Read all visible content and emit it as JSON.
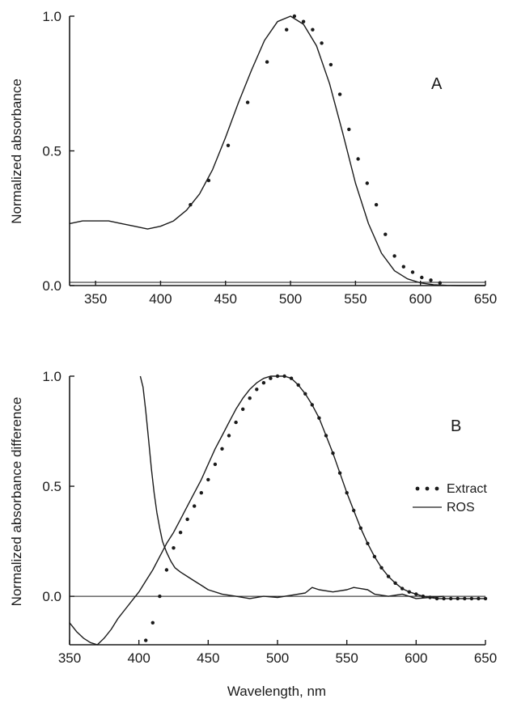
{
  "figure": {
    "xlabel": "Wavelength, nm",
    "colors": {
      "ink": "#1a1a1a",
      "background": "#ffffff"
    }
  },
  "chart_data": [
    {
      "type": "line",
      "panel_label": "A",
      "ylabel": "Normalized absorbance",
      "xlim": [
        330,
        650
      ],
      "ylim": [
        0,
        1.0
      ],
      "x_ticks": [
        "350",
        "400",
        "450",
        "500",
        "550",
        "600",
        "650"
      ],
      "x_tick_values": [
        350,
        400,
        450,
        500,
        550,
        600,
        650
      ],
      "y_ticks": [
        "0.0",
        "0.5",
        "1.0"
      ],
      "y_tick_values": [
        0,
        0.5,
        1.0
      ],
      "grid": false,
      "series": [
        {
          "style": "solid",
          "x": [
            330,
            340,
            350,
            360,
            370,
            380,
            390,
            400,
            410,
            420,
            430,
            440,
            450,
            460,
            470,
            480,
            490,
            500,
            510,
            520,
            530,
            540,
            550,
            560,
            570,
            580,
            590,
            600,
            610,
            620,
            630,
            640,
            650
          ],
          "y": [
            0.23,
            0.24,
            0.24,
            0.24,
            0.23,
            0.22,
            0.21,
            0.22,
            0.24,
            0.28,
            0.34,
            0.43,
            0.55,
            0.68,
            0.8,
            0.91,
            0.98,
            1.0,
            0.97,
            0.89,
            0.75,
            0.57,
            0.38,
            0.23,
            0.12,
            0.055,
            0.025,
            0.01,
            0.003,
            0.001,
            0,
            0,
            0
          ]
        },
        {
          "style": "dotted",
          "x": [
            423,
            437,
            452,
            467,
            482,
            497,
            503,
            510,
            517,
            524,
            531,
            538,
            545,
            552,
            559,
            566,
            573,
            580,
            587,
            594,
            601,
            608,
            615
          ],
          "y": [
            0.3,
            0.39,
            0.52,
            0.68,
            0.83,
            0.95,
            1.0,
            0.98,
            0.95,
            0.9,
            0.82,
            0.71,
            0.58,
            0.47,
            0.38,
            0.3,
            0.19,
            0.11,
            0.07,
            0.05,
            0.03,
            0.02,
            0.01
          ]
        }
      ]
    },
    {
      "type": "line",
      "panel_label": "B",
      "ylabel": "Normalized absorbance difference",
      "xlim": [
        350,
        650
      ],
      "ylim": [
        -0.22,
        1.0
      ],
      "x_ticks": [
        "350",
        "400",
        "450",
        "500",
        "550",
        "600",
        "650"
      ],
      "x_tick_values": [
        350,
        400,
        450,
        500,
        550,
        600,
        650
      ],
      "y_ticks": [
        "0.0",
        "0.5",
        "1.0"
      ],
      "y_tick_values": [
        0,
        0.5,
        1.0
      ],
      "grid": false,
      "zero_line": true,
      "legend": {
        "position": "right",
        "entries": [
          "Extract",
          "ROS"
        ]
      },
      "series": [
        {
          "name": "Extract",
          "style": "dotted",
          "x": [
            405,
            410,
            415,
            420,
            425,
            430,
            435,
            440,
            445,
            450,
            455,
            460,
            465,
            470,
            475,
            480,
            485,
            490,
            495,
            500,
            505,
            510,
            515,
            520,
            525,
            530,
            535,
            540,
            545,
            550,
            555,
            560,
            565,
            570,
            575,
            580,
            585,
            590,
            595,
            600,
            605,
            610,
            615,
            620,
            625,
            630,
            635,
            640,
            645,
            650
          ],
          "y": [
            -0.2,
            -0.12,
            0.0,
            0.12,
            0.22,
            0.29,
            0.35,
            0.41,
            0.47,
            0.53,
            0.6,
            0.67,
            0.73,
            0.79,
            0.85,
            0.9,
            0.94,
            0.97,
            0.99,
            1.0,
            1.0,
            0.99,
            0.96,
            0.92,
            0.87,
            0.81,
            0.73,
            0.65,
            0.56,
            0.47,
            0.39,
            0.31,
            0.24,
            0.18,
            0.13,
            0.09,
            0.06,
            0.035,
            0.02,
            0.01,
            0.0,
            -0.005,
            -0.01,
            -0.01,
            -0.01,
            -0.01,
            -0.01,
            -0.01,
            -0.01,
            -0.01
          ]
        },
        {
          "name": "ROS",
          "style": "solid",
          "series_a": {
            "x": [
              350,
              355,
              360,
              365,
              370,
              375,
              380,
              385,
              390,
              395,
              400,
              405,
              410,
              415,
              420,
              425,
              430,
              435,
              440,
              445,
              450,
              455,
              460,
              465,
              470,
              475,
              480,
              485,
              490,
              495,
              500,
              505,
              510,
              515,
              520,
              525,
              530,
              535,
              540,
              545,
              550,
              555,
              560,
              565,
              570,
              575,
              580,
              585,
              590,
              595,
              600,
              605,
              610,
              615,
              620,
              625,
              630,
              635,
              640,
              645,
              650
            ],
            "y": [
              -0.12,
              -0.16,
              -0.19,
              -0.21,
              -0.22,
              -0.19,
              -0.15,
              -0.1,
              -0.06,
              -0.02,
              0.02,
              0.07,
              0.12,
              0.18,
              0.24,
              0.29,
              0.35,
              0.41,
              0.47,
              0.53,
              0.6,
              0.67,
              0.73,
              0.79,
              0.85,
              0.9,
              0.94,
              0.97,
              0.99,
              1.0,
              1.0,
              1.0,
              0.99,
              0.96,
              0.92,
              0.87,
              0.81,
              0.73,
              0.65,
              0.56,
              0.47,
              0.39,
              0.31,
              0.24,
              0.18,
              0.13,
              0.09,
              0.06,
              0.035,
              0.02,
              0.01,
              0.0,
              -0.005,
              -0.01,
              -0.01,
              -0.01,
              -0.01,
              -0.01,
              -0.01,
              -0.01,
              -0.01
            ]
          },
          "series_b": {
            "x": [
              401,
              403,
              405,
              407,
              409,
              411,
              413,
              415,
              417,
              420,
              423,
              426,
              430,
              435,
              440,
              445,
              450,
              460,
              470,
              480,
              490,
              500,
              510,
              520,
              525,
              530,
              540,
              550,
              555,
              560,
              565,
              570,
              580,
              590,
              600,
              610,
              620
            ],
            "y": [
              1.0,
              0.95,
              0.84,
              0.71,
              0.58,
              0.47,
              0.38,
              0.31,
              0.25,
              0.2,
              0.16,
              0.13,
              0.11,
              0.09,
              0.07,
              0.05,
              0.03,
              0.01,
              0.0,
              -0.01,
              0.0,
              -0.005,
              0.005,
              0.015,
              0.04,
              0.03,
              0.02,
              0.03,
              0.04,
              0.035,
              0.03,
              0.01,
              0.0,
              0.01,
              -0.01,
              -0.005,
              0.0
            ]
          }
        }
      ]
    }
  ]
}
